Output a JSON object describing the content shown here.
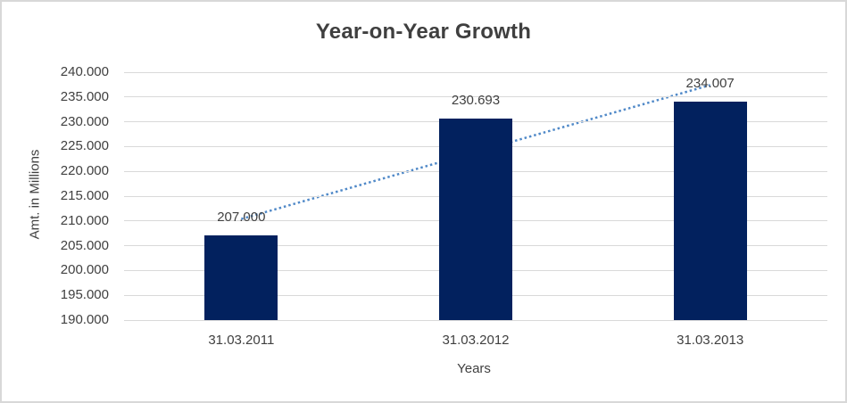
{
  "chart_data": {
    "type": "bar",
    "title": "Year-on-Year Growth",
    "xlabel": "Years",
    "ylabel": "Amt. in Millions",
    "categories": [
      "31.03.2011",
      "31.03.2012",
      "31.03.2013"
    ],
    "values": [
      207.0,
      230.693,
      234.007
    ],
    "value_labels": [
      "207.000",
      "230.693",
      "234.007"
    ],
    "ylim": [
      190,
      240
    ],
    "y_ticks": [
      {
        "value": 190,
        "label": "190.000"
      },
      {
        "value": 195,
        "label": "195.000"
      },
      {
        "value": 200,
        "label": "200.000"
      },
      {
        "value": 205,
        "label": "205.000"
      },
      {
        "value": 210,
        "label": "210.000"
      },
      {
        "value": 215,
        "label": "215.000"
      },
      {
        "value": 220,
        "label": "220.000"
      },
      {
        "value": 225,
        "label": "225.000"
      },
      {
        "value": 230,
        "label": "230.000"
      },
      {
        "value": 235,
        "label": "235.000"
      },
      {
        "value": 240,
        "label": "240.000"
      }
    ],
    "grid": true,
    "legend": "none",
    "trendline": {
      "type": "linear",
      "style": "dotted"
    },
    "colors": {
      "bar": "#02215E",
      "trendline": "#5089C8",
      "gridline": "#D9D9D9",
      "label_text": "#404040",
      "title_text": "#3F3F3F",
      "frame_border": "#D8D8D8"
    }
  }
}
